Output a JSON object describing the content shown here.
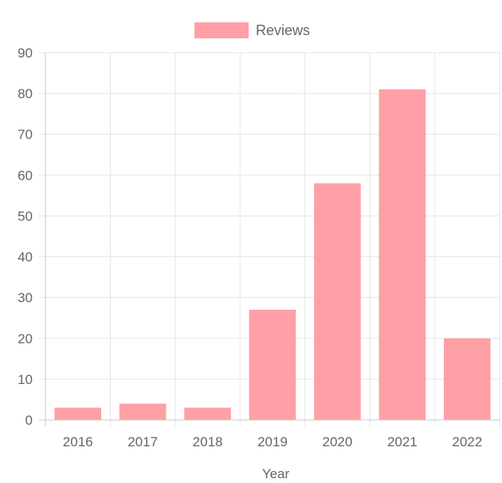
{
  "chart_data": {
    "type": "bar",
    "categories": [
      "2016",
      "2017",
      "2018",
      "2019",
      "2020",
      "2021",
      "2022"
    ],
    "series": [
      {
        "name": "Reviews",
        "values": [
          3,
          4,
          3,
          27,
          58,
          81,
          20
        ],
        "color": "#ff9fa6"
      }
    ],
    "xlabel": "Year",
    "ylabel": "",
    "ylim": [
      0,
      90
    ],
    "yticks": [
      0,
      10,
      20,
      30,
      40,
      50,
      60,
      70,
      80,
      90
    ],
    "grid": true,
    "legend": "top-center"
  },
  "colors": {
    "grid": "#e6e6e6",
    "axis": "#c8c8c8",
    "bar": "#ff9fa6",
    "text": "#666666"
  }
}
